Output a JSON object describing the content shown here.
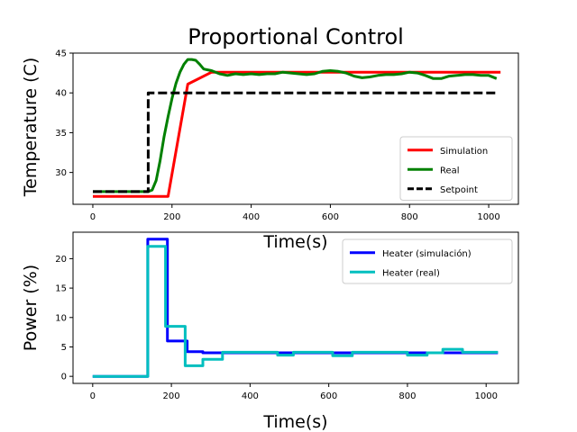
{
  "chart_data": [
    {
      "type": "line",
      "title": "Proportional Control",
      "xlabel": "Time(s)",
      "ylabel": "Temperature (C)",
      "xlim": [
        -50,
        1075
      ],
      "ylim": [
        26,
        45
      ],
      "xticks": [
        0,
        200,
        400,
        600,
        800,
        1000
      ],
      "yticks": [
        30,
        35,
        40,
        45
      ],
      "grid": false,
      "legend_position": "lower-right",
      "series": [
        {
          "name": "Simulation",
          "color": "#ff0000",
          "width": 3,
          "dash": "",
          "x": [
            0,
            140,
            190,
            240,
            300,
            350,
            450,
            550,
            650,
            750,
            850,
            950,
            1030
          ],
          "y": [
            27,
            27,
            27,
            41.1,
            42.6,
            42.6,
            42.6,
            42.6,
            42.6,
            42.6,
            42.6,
            42.6,
            42.6
          ]
        },
        {
          "name": "Real",
          "color": "#008000",
          "width": 3,
          "dash": "",
          "x": [
            0,
            140,
            150,
            160,
            170,
            180,
            190,
            200,
            210,
            220,
            230,
            240,
            250,
            260,
            270,
            280,
            290,
            300,
            320,
            340,
            360,
            380,
            400,
            420,
            440,
            460,
            480,
            500,
            520,
            540,
            560,
            580,
            600,
            620,
            640,
            660,
            680,
            700,
            720,
            740,
            760,
            780,
            800,
            820,
            840,
            860,
            880,
            900,
            920,
            940,
            960,
            980,
            1000,
            1020
          ],
          "y": [
            27.6,
            27.6,
            27.8,
            29,
            31.5,
            34.5,
            37,
            39.3,
            41.2,
            42.6,
            43.6,
            44.2,
            44.2,
            44.1,
            43.6,
            43,
            42.9,
            42.8,
            42.4,
            42.2,
            42.4,
            42.3,
            42.4,
            42.3,
            42.4,
            42.4,
            42.6,
            42.5,
            42.4,
            42.3,
            42.4,
            42.7,
            42.8,
            42.7,
            42.5,
            42.1,
            41.9,
            42.0,
            42.2,
            42.3,
            42.3,
            42.4,
            42.6,
            42.5,
            42.2,
            41.8,
            41.8,
            42.1,
            42.2,
            42.3,
            42.3,
            42.2,
            42.2,
            41.8
          ]
        },
        {
          "name": "Setpoint",
          "color": "#000000",
          "width": 3,
          "dash": "10,4",
          "x": [
            0,
            140,
            140,
            1025
          ],
          "y": [
            27.6,
            27.6,
            40,
            40
          ]
        }
      ]
    },
    {
      "type": "line",
      "title": "",
      "xlabel": "Time(s)",
      "ylabel": "Power (%)",
      "xlim": [
        -50,
        1082
      ],
      "ylim": [
        -1.2,
        24.5
      ],
      "xticks": [
        0,
        200,
        400,
        600,
        800,
        1000
      ],
      "yticks": [
        0,
        5,
        10,
        15,
        20
      ],
      "grid": false,
      "legend_position": "top-right",
      "series": [
        {
          "name": "Heater (simulación)",
          "color": "#0000ff",
          "width": 3,
          "dash": "",
          "x": [
            0,
            140,
            140,
            190,
            190,
            240,
            240,
            280,
            280,
            1030
          ],
          "y": [
            0,
            0,
            23.3,
            23.3,
            6,
            6,
            4.2,
            4.2,
            4.0,
            4.0
          ]
        },
        {
          "name": "Heater (real)",
          "color": "#00bfbf",
          "width": 3,
          "dash": "",
          "x": [
            0,
            140,
            140,
            185,
            185,
            235,
            235,
            280,
            280,
            330,
            330,
            470,
            470,
            510,
            510,
            610,
            610,
            660,
            660,
            800,
            800,
            850,
            850,
            890,
            890,
            940,
            940,
            1030
          ],
          "y": [
            0,
            0,
            22.1,
            22.1,
            8.5,
            8.5,
            1.8,
            1.8,
            2.9,
            2.9,
            4.1,
            4.1,
            3.6,
            3.6,
            4.1,
            4.1,
            3.5,
            3.5,
            4.1,
            4.1,
            3.6,
            3.6,
            4.0,
            4.0,
            4.6,
            4.6,
            4.1,
            4.1
          ]
        }
      ]
    }
  ]
}
